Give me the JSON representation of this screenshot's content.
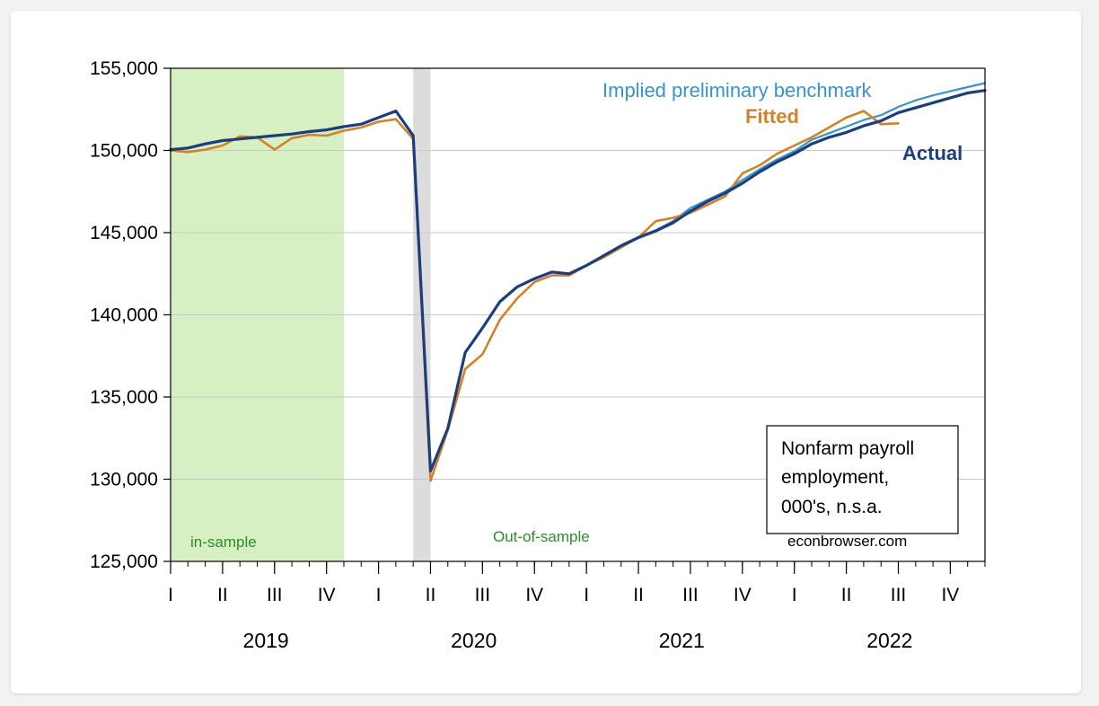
{
  "chart_data": {
    "type": "line",
    "frequency": "monthly",
    "x_start": "2019-01",
    "x_end": "2022-12",
    "ylim": [
      125000,
      155000
    ],
    "yticks": [
      125000,
      130000,
      135000,
      140000,
      145000,
      150000,
      155000
    ],
    "ytick_labels": [
      "125,000",
      "130,000",
      "135,000",
      "140,000",
      "145,000",
      "150,000",
      "155,000"
    ],
    "period_ticks": [
      {
        "label": "I",
        "month": "2019-01"
      },
      {
        "label": "II",
        "month": "2019-04"
      },
      {
        "label": "III",
        "month": "2019-07"
      },
      {
        "label": "IV",
        "month": "2019-10"
      },
      {
        "label": "I",
        "month": "2020-01"
      },
      {
        "label": "II",
        "month": "2020-04"
      },
      {
        "label": "III",
        "month": "2020-07"
      },
      {
        "label": "IV",
        "month": "2020-10"
      },
      {
        "label": "I",
        "month": "2021-01"
      },
      {
        "label": "II",
        "month": "2021-04"
      },
      {
        "label": "III",
        "month": "2021-07"
      },
      {
        "label": "IV",
        "month": "2021-10"
      },
      {
        "label": "I",
        "month": "2022-01"
      },
      {
        "label": "II",
        "month": "2022-04"
      },
      {
        "label": "III",
        "month": "2022-07"
      },
      {
        "label": "IV",
        "month": "2022-10"
      }
    ],
    "years": [
      "2019",
      "2020",
      "2021",
      "2022"
    ],
    "grid": "horizontal",
    "shaded_regions": [
      {
        "name": "in-sample",
        "from": "2019-01",
        "to": "2019-11",
        "color": "#d6f0c4"
      },
      {
        "name": "recession",
        "from": "2020-03",
        "to": "2020-04",
        "color": "#dcdcdc"
      }
    ],
    "series": [
      {
        "name": "Actual",
        "color": "#1c3f7c",
        "x": [
          "2019-01",
          "2019-02",
          "2019-03",
          "2019-04",
          "2019-05",
          "2019-06",
          "2019-07",
          "2019-08",
          "2019-09",
          "2019-10",
          "2019-11",
          "2019-12",
          "2020-01",
          "2020-02",
          "2020-03",
          "2020-04",
          "2020-05",
          "2020-06",
          "2020-07",
          "2020-08",
          "2020-09",
          "2020-10",
          "2020-11",
          "2020-12",
          "2021-01",
          "2021-02",
          "2021-03",
          "2021-04",
          "2021-05",
          "2021-06",
          "2021-07",
          "2021-08",
          "2021-09",
          "2021-10",
          "2021-11",
          "2021-12",
          "2022-01",
          "2022-02",
          "2022-03",
          "2022-04",
          "2022-05",
          "2022-06",
          "2022-07",
          "2022-08",
          "2022-09",
          "2022-10",
          "2022-11",
          "2022-12"
        ],
        "values": [
          150050,
          150150,
          150400,
          150600,
          150700,
          150800,
          150900,
          151000,
          151150,
          151250,
          151450,
          151600,
          152000,
          152400,
          150900,
          130500,
          133100,
          137700,
          139200,
          140800,
          141700,
          142200,
          142600,
          142500,
          143000,
          143600,
          144200,
          144700,
          145100,
          145600,
          146300,
          146900,
          147400,
          148000,
          148700,
          149300,
          149800,
          150400,
          150800,
          151100,
          151500,
          151800,
          152300,
          152600,
          152900,
          153200,
          153500,
          153650
        ]
      },
      {
        "name": "Fitted",
        "color": "#d4822a",
        "x": [
          "2019-01",
          "2019-02",
          "2019-03",
          "2019-04",
          "2019-05",
          "2019-06",
          "2019-07",
          "2019-08",
          "2019-09",
          "2019-10",
          "2019-11",
          "2019-12",
          "2020-01",
          "2020-02",
          "2020-03",
          "2020-04",
          "2020-05",
          "2020-06",
          "2020-07",
          "2020-08",
          "2020-09",
          "2020-10",
          "2020-11",
          "2020-12",
          "2021-01",
          "2021-02",
          "2021-03",
          "2021-04",
          "2021-05",
          "2021-06",
          "2021-07",
          "2021-08",
          "2021-09",
          "2021-10",
          "2021-11",
          "2021-12",
          "2022-01",
          "2022-02",
          "2022-03",
          "2022-04",
          "2022-05",
          "2022-06",
          "2022-07"
        ],
        "values": [
          150000,
          149900,
          150050,
          150300,
          150850,
          150800,
          150050,
          150750,
          150950,
          150900,
          151200,
          151400,
          151750,
          151900,
          150700,
          129900,
          133000,
          136700,
          137600,
          139700,
          141000,
          142000,
          142400,
          142400,
          143000,
          143500,
          144100,
          144700,
          145700,
          145900,
          146200,
          146700,
          147200,
          148600,
          149100,
          149800,
          150300,
          150800,
          151400,
          152000,
          152400,
          151600,
          151650
        ]
      },
      {
        "name": "Implied preliminary benchmark",
        "color": "#3a93c9",
        "x": [
          "2021-04",
          "2021-05",
          "2021-06",
          "2021-07",
          "2021-08",
          "2021-09",
          "2021-10",
          "2021-11",
          "2021-12",
          "2022-01",
          "2022-02",
          "2022-03",
          "2022-04",
          "2022-05",
          "2022-06",
          "2022-07",
          "2022-08",
          "2022-09",
          "2022-10",
          "2022-11",
          "2022-12"
        ],
        "values": [
          144750,
          145150,
          145700,
          146500,
          147000,
          147500,
          148200,
          148850,
          149450,
          149950,
          150650,
          151050,
          151450,
          151850,
          152150,
          152650,
          153050,
          153350,
          153600,
          153850,
          154100
        ]
      }
    ],
    "annotations": [
      {
        "name": "in-sample",
        "text": "in-sample",
        "color": "#2e8b2e"
      },
      {
        "name": "out-of-sample",
        "text": "Out-of-sample",
        "color": "#2e8b2e"
      },
      {
        "name": "note",
        "lines": [
          "Nonfarm payroll",
          "employment,",
          "000's, n.s.a."
        ]
      },
      {
        "name": "source",
        "text": "econbrowser.com"
      }
    ]
  }
}
